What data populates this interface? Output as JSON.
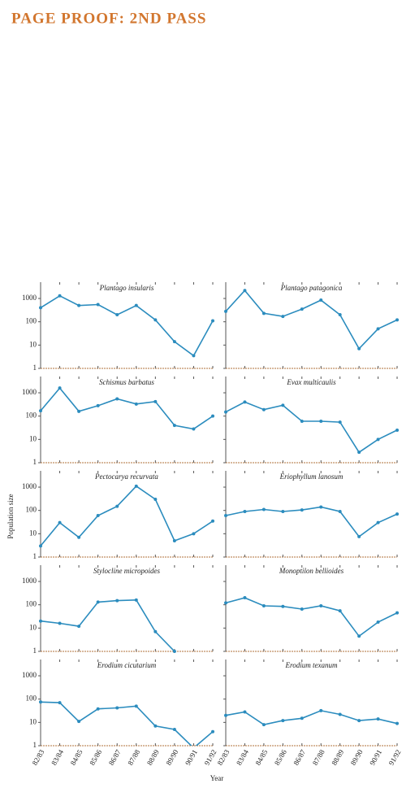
{
  "header": "PAGE PROOF: 2ND PASS",
  "chart_data": {
    "type": "line",
    "log_scale": true,
    "color": "#2b8cbe",
    "ylabel": "Population size",
    "xlabel": "Year",
    "categories": [
      "82/83",
      "83/84",
      "84/85",
      "85/86",
      "86/87",
      "87/88",
      "88/89",
      "89/90",
      "90/91",
      "91/92"
    ],
    "ylim": [
      1,
      5000
    ],
    "yticks": [
      1,
      10,
      100,
      1000
    ],
    "panels": [
      {
        "title": "Plantago insularis",
        "values": [
          400,
          1300,
          500,
          550,
          200,
          500,
          120,
          14,
          3.5,
          110
        ]
      },
      {
        "title": "Plantago patagonica",
        "values": [
          280,
          2200,
          230,
          170,
          350,
          850,
          200,
          7,
          50,
          120
        ]
      },
      {
        "title": "Schismus barbatus",
        "values": [
          170,
          1600,
          160,
          280,
          550,
          330,
          420,
          40,
          28,
          100
        ]
      },
      {
        "title": "Evax multicaulis",
        "values": [
          150,
          400,
          190,
          290,
          60,
          60,
          55,
          2.8,
          10,
          25
        ]
      },
      {
        "title": "Pectocarya recurvata",
        "values": [
          3,
          30,
          7,
          60,
          150,
          1100,
          300,
          5,
          10,
          35
        ]
      },
      {
        "title": "Eriophyllum lanosum",
        "values": [
          60,
          90,
          110,
          90,
          105,
          140,
          90,
          7.5,
          30,
          70
        ]
      },
      {
        "title": "Stylocline micropoides",
        "values": [
          20,
          16,
          12,
          130,
          150,
          160,
          7,
          1,
          null,
          null
        ]
      },
      {
        "title": "Monoptilon bellioides",
        "values": [
          120,
          200,
          90,
          85,
          65,
          90,
          55,
          4.5,
          18,
          45
        ]
      },
      {
        "title": "Erodium cicutarium",
        "values": [
          75,
          70,
          11,
          38,
          42,
          50,
          7,
          5,
          0.8,
          4
        ]
      },
      {
        "title": "Erodium texanum",
        "values": [
          20,
          28,
          8,
          12,
          15,
          32,
          22,
          12,
          14,
          9
        ]
      }
    ]
  }
}
